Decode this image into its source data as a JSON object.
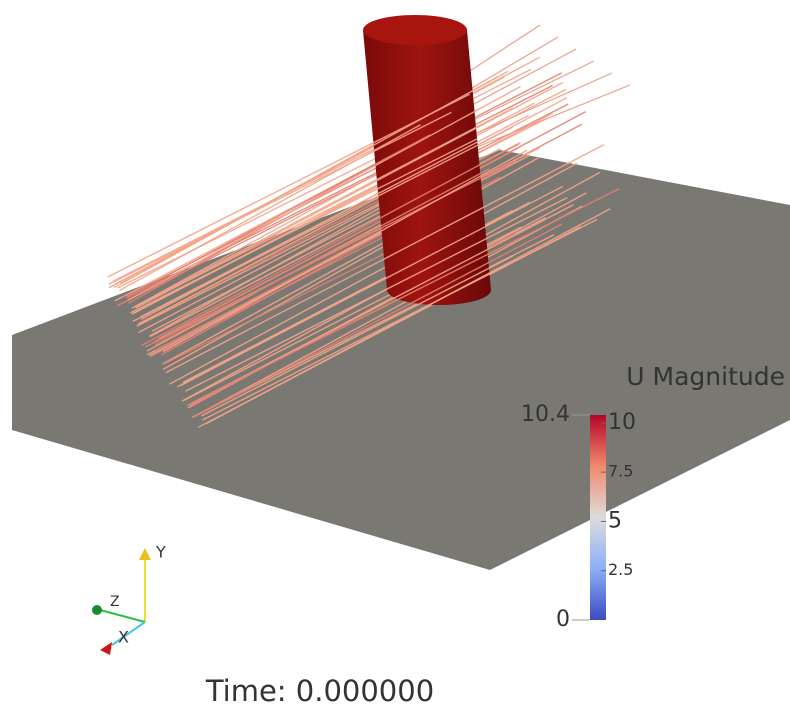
{
  "colorbar": {
    "title": "U Magnitude",
    "range": [
      0,
      10.4
    ],
    "ticks": [
      10,
      7.5,
      5,
      2.5
    ]
  },
  "time_label": "Time: 0.000000",
  "axes": {
    "x": "X",
    "y": "Y",
    "z": "Z"
  }
}
